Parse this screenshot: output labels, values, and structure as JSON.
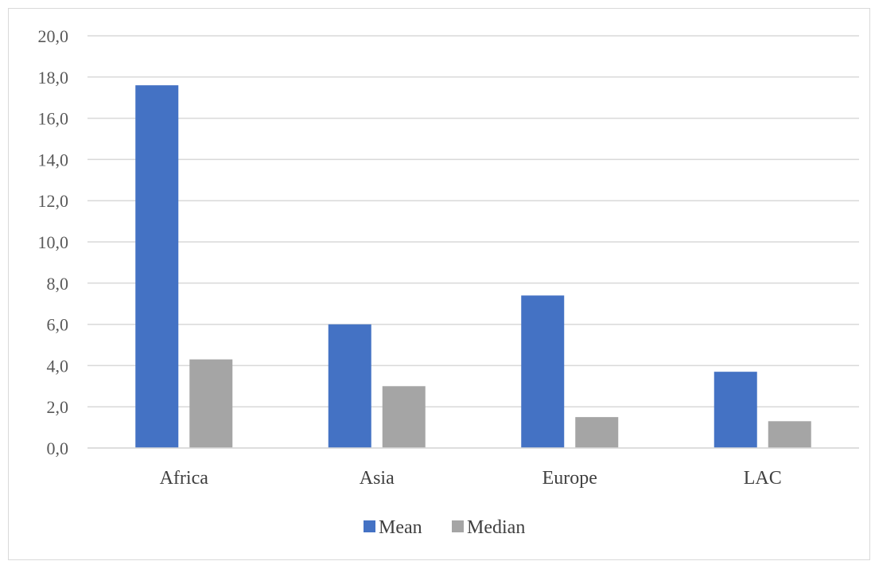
{
  "chart_data": {
    "type": "bar",
    "categories": [
      "Africa",
      "Asia",
      "Europe",
      "LAC"
    ],
    "series": [
      {
        "name": "Mean",
        "values": [
          17.6,
          6.0,
          7.4,
          3.7
        ],
        "color": "#4472c4"
      },
      {
        "name": "Median",
        "values": [
          4.3,
          3.0,
          1.5,
          1.3
        ],
        "color": "#a5a5a5"
      }
    ],
    "yticks": [
      "0,0",
      "2,0",
      "4,0",
      "6,0",
      "8,0",
      "10,0",
      "12,0",
      "14,0",
      "16,0",
      "18,0",
      "20,0"
    ],
    "ylim": [
      0,
      20
    ],
    "grid": true,
    "legend_position": "bottom"
  }
}
